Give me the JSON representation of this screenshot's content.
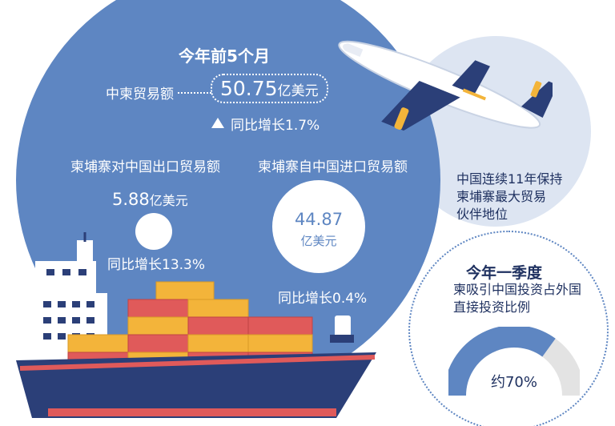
{
  "headline": "今年前5个月",
  "total": {
    "label": "中柬贸易额",
    "value": "50.75",
    "unit": "亿美元",
    "growth": "同比增长1.7%"
  },
  "export": {
    "label": "柬埔寨对中国出口贸易额",
    "value": "5.88",
    "unit": "亿美元",
    "growth": "同比增长13.3%"
  },
  "import": {
    "label": "柬埔寨自中国进口贸易额",
    "value": "44.87",
    "unit": "亿美元",
    "growth": "同比增长0.4%"
  },
  "partner": {
    "lines": [
      "中国连续11年保持",
      "柬埔寨最大贸易",
      "伙伴地位"
    ]
  },
  "investment": {
    "title": "今年一季度",
    "lines": [
      "柬吸引中国投资占外国",
      "直接投资比例"
    ],
    "value_label": "约70%",
    "share": 0.7
  },
  "colors": {
    "main_blue": "#5e86c2",
    "navy": "#1f3160",
    "light_blue": "#dde5f2",
    "container_red": "#e05a5a",
    "container_yellow": "#f3b43a",
    "gauge_gray": "#e3e3e3"
  }
}
